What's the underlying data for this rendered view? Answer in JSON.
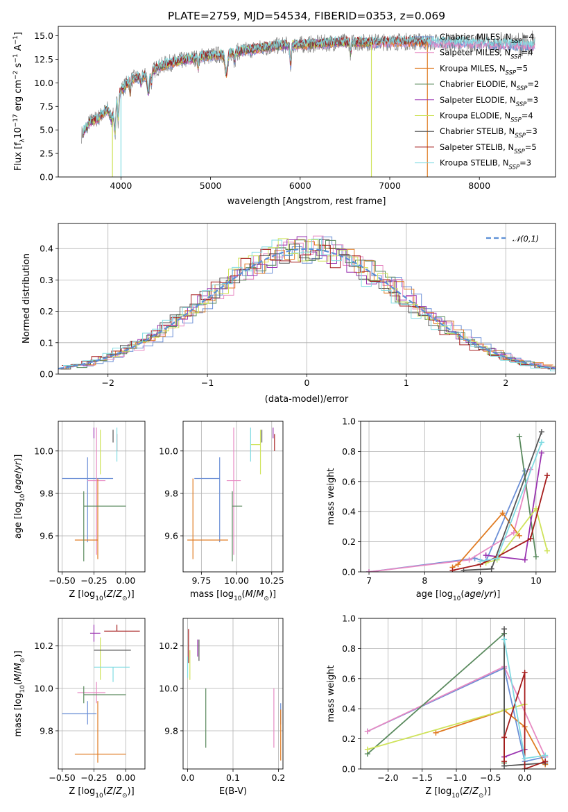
{
  "title": "PLATE=2759, MJD=54534, FIBERID=0353, z=0.069",
  "colors": {
    "Chabrier MILES": "#6b8fd6",
    "Salpeter MILES": "#e78ac3",
    "Kroupa MILES": "#e07b22",
    "Chabrier ELODIE": "#5a8a5e",
    "Salpeter ELODIE": "#9a33b0",
    "Kroupa ELODIE": "#cfe35a",
    "Chabrier STELIB": "#555555",
    "Salpeter STELIB": "#a51c1c",
    "Kroupa STELIB": "#80dbe2",
    "data": "#7f7f7f",
    "gauss": "#5b8fd6"
  },
  "legend_spectrum": [
    {
      "model": "Chabrier MILES",
      "text": "Chabrier MILES, N",
      "sub": "SSP",
      "tail": "=4"
    },
    {
      "model": "Salpeter MILES",
      "text": "Salpeter MILES, N",
      "sub": "SSP",
      "tail": "=4"
    },
    {
      "model": "Kroupa MILES",
      "text": "Kroupa MILES, N",
      "sub": "SSP",
      "tail": "=5"
    },
    {
      "model": "Chabrier ELODIE",
      "text": "Chabrier ELODIE, N",
      "sub": "SSP",
      "tail": "=2"
    },
    {
      "model": "Salpeter ELODIE",
      "text": "Salpeter ELODIE, N",
      "sub": "SSP",
      "tail": "=3"
    },
    {
      "model": "Kroupa ELODIE",
      "text": "Kroupa ELODIE, N",
      "sub": "SSP",
      "tail": "=4"
    },
    {
      "model": "Chabrier STELIB",
      "text": "Chabrier STELIB, N",
      "sub": "SSP",
      "tail": "=3"
    },
    {
      "model": "Salpeter STELIB",
      "text": "Salpeter STELIB, N",
      "sub": "SSP",
      "tail": "=5"
    },
    {
      "model": "Kroupa STELIB",
      "text": "Kroupa STELIB, N",
      "sub": "SSP",
      "tail": "=3"
    }
  ],
  "chart_data": [
    {
      "id": "spectrum",
      "type": "line",
      "title": "PLATE=2759, MJD=54534, FIBERID=0353, z=0.069",
      "xlabel": "wavelength [Angstrom, rest frame]",
      "ylabel": "Flux [fλ10⁻¹⁷ erg cm⁻² s⁻¹ A⁻¹]",
      "xlim": [
        3300,
        8850
      ],
      "ylim": [
        0,
        16
      ],
      "xticks": [
        4000,
        5000,
        6000,
        7000,
        8000
      ],
      "yticks": [
        0.0,
        2.5,
        5.0,
        7.5,
        10.0,
        12.5,
        15.0
      ],
      "legend_position": "right",
      "continuum": {
        "x": [
          3560,
          3650,
          3750,
          3850,
          3900,
          3950,
          4000,
          4100,
          4200,
          4300,
          4400,
          4500,
          4700,
          4900,
          5100,
          5300,
          5500,
          5800,
          6100,
          6400,
          6800,
          7200,
          7600,
          8000,
          8300,
          8600
        ],
        "y": [
          4.5,
          5.8,
          6.3,
          7.2,
          6.0,
          8.2,
          9.2,
          10.3,
          10.6,
          10.8,
          11.6,
          12.0,
          12.4,
          12.8,
          13.0,
          13.3,
          13.6,
          14.0,
          14.1,
          14.3,
          14.3,
          14.4,
          14.3,
          14.2,
          14.1,
          14.0
        ]
      },
      "data_series": "observed spectrum (grey)",
      "model_series": [
        "Chabrier MILES",
        "Salpeter MILES",
        "Kroupa MILES",
        "Chabrier ELODIE",
        "Salpeter ELODIE",
        "Kroupa ELODIE",
        "Chabrier STELIB",
        "Salpeter STELIB",
        "Kroupa STELIB"
      ]
    },
    {
      "id": "residuals",
      "type": "histogram",
      "xlabel": "(data-model)/error",
      "ylabel": "Normed distribution",
      "xlim": [
        -2.5,
        2.5
      ],
      "ylim": [
        0,
        0.48
      ],
      "xticks": [
        -2,
        -1,
        0,
        1,
        2
      ],
      "yticks": [
        0.0,
        0.1,
        0.2,
        0.3,
        0.4
      ],
      "bin_width": 0.1,
      "grid": true,
      "legend_position": "top-right",
      "gaussian": {
        "name": "𝒩(0,1)",
        "mean": 0,
        "sigma": 1
      }
    },
    {
      "id": "age_vs_Z",
      "type": "errorbar",
      "xlabel": "Z [log₁₀(Z/Z⊙)]",
      "ylabel": "age [log₁₀(age/yr)]",
      "xlim": [
        -0.53,
        0.15
      ],
      "ylim": [
        9.43,
        10.14
      ],
      "xticks": [
        -0.5,
        -0.25,
        0.0
      ],
      "xticklabels": [
        "−0.50",
        "−0.25",
        "0.00"
      ],
      "yticks": [
        9.6,
        9.8,
        10.0
      ],
      "grid": true,
      "points": [
        {
          "model": "Chabrier MILES",
          "x": -0.3,
          "xerr": [
            0.2,
            0.2
          ],
          "y": 9.87,
          "yerr": [
            0.3,
            0.1
          ]
        },
        {
          "model": "Salpeter MILES",
          "x": -0.23,
          "xerr": [
            0.07,
            0.07
          ],
          "y": 9.86,
          "yerr": [
            0.35,
            0.25
          ]
        },
        {
          "model": "Kroupa MILES",
          "x": -0.22,
          "xerr": [
            0.18,
            0.0
          ],
          "y": 9.58,
          "yerr": [
            0.09,
            0.29
          ]
        },
        {
          "model": "Chabrier ELODIE",
          "x": -0.33,
          "xerr": [
            0.0,
            0.33
          ],
          "y": 9.74,
          "yerr": [
            0.26,
            0.07
          ]
        },
        {
          "model": "Salpeter ELODIE",
          "x": -0.25,
          "xerr": [
            0.0,
            0.0
          ],
          "y": 10.1,
          "yerr": [
            0.04,
            0.01
          ]
        },
        {
          "model": "Kroupa ELODIE",
          "x": -0.2,
          "xerr": [
            0.0,
            0.0
          ],
          "y": 10.03,
          "yerr": [
            0.14,
            0.07
          ]
        },
        {
          "model": "Chabrier STELIB",
          "x": -0.1,
          "xerr": [
            0.0,
            0.0
          ],
          "y": 10.09,
          "yerr": [
            0.05,
            0.01
          ]
        },
        {
          "model": "Salpeter STELIB",
          "x": -0.07,
          "xerr": [
            0.0,
            0.0
          ],
          "y": 10.07,
          "yerr": [
            0.07,
            0.01
          ]
        },
        {
          "model": "Kroupa STELIB",
          "x": -0.07,
          "xerr": [
            0.0,
            0.0
          ],
          "y": 10.05,
          "yerr": [
            0.1,
            0.06
          ]
        }
      ]
    },
    {
      "id": "age_vs_mass",
      "type": "errorbar",
      "xlabel": "mass [log₁₀(M/M⊙)]",
      "xlim": [
        9.62,
        10.33
      ],
      "ylim": [
        9.43,
        10.14
      ],
      "xticks": [
        9.75,
        10.0,
        10.25
      ],
      "xticklabels": [
        "9.75",
        "10.00",
        "10.25"
      ],
      "yticks": [
        9.6,
        9.8,
        10.0
      ],
      "grid": true,
      "points": [
        {
          "model": "Chabrier MILES",
          "x": 9.88,
          "xerr": [
            0.18,
            0.0
          ],
          "y": 9.87,
          "yerr": [
            0.3,
            0.1
          ]
        },
        {
          "model": "Salpeter MILES",
          "x": 9.98,
          "xerr": [
            0.05,
            0.05
          ],
          "y": 9.86,
          "yerr": [
            0.35,
            0.25
          ]
        },
        {
          "model": "Kroupa MILES",
          "x": 9.69,
          "xerr": [
            0.04,
            0.25
          ],
          "y": 9.58,
          "yerr": [
            0.09,
            0.29
          ]
        },
        {
          "model": "Chabrier ELODIE",
          "x": 9.97,
          "xerr": [
            0.0,
            0.07
          ],
          "y": 9.74,
          "yerr": [
            0.26,
            0.07
          ]
        },
        {
          "model": "Salpeter ELODIE",
          "x": 10.26,
          "xerr": [
            0.0,
            0.0
          ],
          "y": 10.1,
          "yerr": [
            0.04,
            0.01
          ]
        },
        {
          "model": "Kroupa ELODIE",
          "x": 10.17,
          "xerr": [
            0.07,
            0.0
          ],
          "y": 10.03,
          "yerr": [
            0.14,
            0.07
          ]
        },
        {
          "model": "Chabrier STELIB",
          "x": 10.18,
          "xerr": [
            0.0,
            0.0
          ],
          "y": 10.09,
          "yerr": [
            0.05,
            0.01
          ]
        },
        {
          "model": "Salpeter STELIB",
          "x": 10.27,
          "xerr": [
            0.0,
            0.0
          ],
          "y": 10.07,
          "yerr": [
            0.07,
            0.01
          ]
        },
        {
          "model": "Kroupa STELIB",
          "x": 10.1,
          "xerr": [
            0.0,
            0.0
          ],
          "y": 10.05,
          "yerr": [
            0.1,
            0.06
          ]
        }
      ]
    },
    {
      "id": "weight_vs_age",
      "type": "line",
      "xlabel": "age [log₁₀(age/yr)]",
      "ylabel": "mass weight",
      "xlim": [
        6.85,
        10.35
      ],
      "ylim": [
        0,
        1.0
      ],
      "xticks": [
        7,
        8,
        9,
        10
      ],
      "yticks": [
        0.0,
        0.2,
        0.4,
        0.6,
        0.8,
        1.0
      ],
      "grid": true,
      "series": [
        {
          "model": "Chabrier MILES",
          "x": [
            7.0,
            8.9,
            9.1,
            9.8
          ],
          "y": [
            0.0,
            0.09,
            0.07,
            0.67
          ]
        },
        {
          "model": "Salpeter MILES",
          "x": [
            7.0,
            8.8,
            9.6,
            9.9
          ],
          "y": [
            0.0,
            0.08,
            0.26,
            0.68
          ]
        },
        {
          "model": "Kroupa MILES",
          "x": [
            8.5,
            8.6,
            9.4,
            9.7
          ],
          "y": [
            0.03,
            0.05,
            0.39,
            0.24
          ]
        },
        {
          "model": "Chabrier ELODIE",
          "x": [
            9.7,
            10.0
          ],
          "y": [
            0.9,
            0.1
          ]
        },
        {
          "model": "Salpeter ELODIE",
          "x": [
            9.1,
            9.8,
            10.1
          ],
          "y": [
            0.11,
            0.08,
            0.79
          ]
        },
        {
          "model": "Kroupa ELODIE",
          "x": [
            9.1,
            9.3,
            10.0,
            10.2
          ],
          "y": [
            0.06,
            0.08,
            0.42,
            0.14
          ]
        },
        {
          "model": "Chabrier STELIB",
          "x": [
            8.7,
            9.2,
            10.1
          ],
          "y": [
            0.01,
            0.02,
            0.93
          ]
        },
        {
          "model": "Salpeter STELIB",
          "x": [
            8.5,
            9.0,
            9.3,
            9.9,
            10.2
          ],
          "y": [
            0.01,
            0.05,
            0.1,
            0.22,
            0.64
          ]
        },
        {
          "model": "Kroupa STELIB",
          "x": [
            9.0,
            9.3,
            10.1
          ],
          "y": [
            0.07,
            0.09,
            0.86
          ]
        }
      ]
    },
    {
      "id": "mass_vs_Z",
      "type": "errorbar",
      "xlabel": "Z [log₁₀(Z/Z⊙)]",
      "ylabel": "mass [log₁₀(M/M⊙)]",
      "xlim": [
        -0.53,
        0.15
      ],
      "ylim": [
        9.62,
        10.33
      ],
      "xticks": [
        -0.5,
        -0.25,
        0.0
      ],
      "xticklabels": [
        "−0.50",
        "−0.25",
        "0.00"
      ],
      "yticks": [
        9.8,
        10.0,
        10.2
      ],
      "grid": true,
      "points": [
        {
          "model": "Chabrier MILES",
          "x": -0.3,
          "xerr": [
            0.2,
            0.07
          ],
          "y": 9.88,
          "yerr": [
            0.05,
            0.06
          ]
        },
        {
          "model": "Salpeter MILES",
          "x": -0.23,
          "xerr": [
            0.15,
            0.07
          ],
          "y": 9.98,
          "yerr": [
            0.05,
            0.05
          ]
        },
        {
          "model": "Kroupa MILES",
          "x": -0.22,
          "xerr": [
            0.18,
            0.22
          ],
          "y": 9.69,
          "yerr": [
            0.04,
            0.25
          ]
        },
        {
          "model": "Chabrier ELODIE",
          "x": -0.33,
          "xerr": [
            0.0,
            0.33
          ],
          "y": 9.97,
          "yerr": [
            0.04,
            0.04
          ]
        },
        {
          "model": "Salpeter ELODIE",
          "x": -0.25,
          "xerr": [
            0.03,
            0.05
          ],
          "y": 10.26,
          "yerr": [
            0.04,
            0.04
          ]
        },
        {
          "model": "Kroupa ELODIE",
          "x": -0.2,
          "xerr": [
            0.0,
            0.0
          ],
          "y": 10.17,
          "yerr": [
            0.13,
            0.07
          ]
        },
        {
          "model": "Chabrier STELIB",
          "x": -0.1,
          "xerr": [
            0.15,
            0.14
          ],
          "y": 10.18,
          "yerr": [
            0.0,
            0.0
          ]
        },
        {
          "model": "Salpeter STELIB",
          "x": -0.07,
          "xerr": [
            0.1,
            0.18
          ],
          "y": 10.27,
          "yerr": [
            0.0,
            0.03
          ]
        },
        {
          "model": "Kroupa STELIB",
          "x": -0.1,
          "xerr": [
            0.15,
            0.13
          ],
          "y": 10.1,
          "yerr": [
            0.07,
            0.0
          ]
        }
      ]
    },
    {
      "id": "mass_vs_ebv",
      "type": "errorbar",
      "xlabel": "E(B-V)",
      "xlim": [
        -0.01,
        0.21
      ],
      "ylim": [
        9.62,
        10.33
      ],
      "xticks": [
        0.0,
        0.1,
        0.2
      ],
      "xticklabels": [
        "0.0",
        "0.1",
        "0.2"
      ],
      "yticks": [
        9.8,
        10.0,
        10.2
      ],
      "grid": true,
      "points": [
        {
          "model": "Chabrier MILES",
          "x": 0.205,
          "xerr": [
            0.0,
            0.0
          ],
          "y": 9.88,
          "yerr": [
            0.05,
            0.05
          ]
        },
        {
          "model": "Salpeter MILES",
          "x": 0.19,
          "xerr": [
            0.0,
            0.0
          ],
          "y": 9.87,
          "yerr": [
            0.15,
            0.13
          ]
        },
        {
          "model": "Kroupa MILES",
          "x": 0.205,
          "xerr": [
            0.0,
            0.0
          ],
          "y": 9.78,
          "yerr": [
            0.12,
            0.12
          ]
        },
        {
          "model": "Chabrier ELODIE",
          "x": 0.04,
          "xerr": [
            0.0,
            0.0
          ],
          "y": 9.86,
          "yerr": [
            0.14,
            0.14
          ]
        },
        {
          "model": "Salpeter ELODIE",
          "x": 0.022,
          "xerr": [
            0.0,
            0.0
          ],
          "y": 10.19,
          "yerr": [
            0.04,
            0.04
          ]
        },
        {
          "model": "Kroupa ELODIE",
          "x": 0.005,
          "xerr": [
            0.0,
            0.0
          ],
          "y": 10.11,
          "yerr": [
            0.07,
            0.07
          ]
        },
        {
          "model": "Chabrier STELIB",
          "x": 0.025,
          "xerr": [
            0.0,
            0.0
          ],
          "y": 10.18,
          "yerr": [
            0.05,
            0.05
          ]
        },
        {
          "model": "Salpeter STELIB",
          "x": 0.002,
          "xerr": [
            0.0,
            0.0
          ],
          "y": 10.2,
          "yerr": [
            0.08,
            0.08
          ]
        },
        {
          "model": "Kroupa STELIB",
          "x": 0.0,
          "xerr": [
            0.0,
            0.0
          ],
          "y": 10.1,
          "yerr": [
            0.05,
            0.05
          ]
        }
      ]
    },
    {
      "id": "weight_vs_Z",
      "type": "line",
      "xlabel": "Z [log₁₀(Z/Z⊙)]",
      "ylabel": "mass weight",
      "xlim": [
        -2.4,
        0.45
      ],
      "ylim": [
        0,
        1.0
      ],
      "xticks": [
        -2.0,
        -1.5,
        -1.0,
        -0.5,
        0.0
      ],
      "xticklabels": [
        "−2.0",
        "−1.5",
        "−1.0",
        "−0.5",
        "0.0"
      ],
      "yticks": [
        0.0,
        0.2,
        0.4,
        0.6,
        0.8,
        1.0
      ],
      "grid": true,
      "series": [
        {
          "model": "Chabrier MILES",
          "x": [
            -2.3,
            -0.3,
            0.0,
            0.3
          ],
          "y": [
            0.25,
            0.67,
            0.05,
            0.08
          ]
        },
        {
          "model": "Salpeter MILES",
          "x": [
            -2.3,
            -0.3,
            0.3
          ],
          "y": [
            0.25,
            0.68,
            0.08
          ]
        },
        {
          "model": "Kroupa MILES",
          "x": [
            -1.3,
            -0.3,
            0.0,
            0.3
          ],
          "y": [
            0.24,
            0.39,
            0.28,
            0.03
          ]
        },
        {
          "model": "Chabrier ELODIE",
          "x": [
            -2.3,
            -0.3,
            -0.3
          ],
          "y": [
            0.1,
            0.9,
            0.04
          ]
        },
        {
          "model": "Salpeter ELODIE",
          "x": [
            -0.3,
            0.0
          ],
          "y": [
            0.08,
            0.13
          ]
        },
        {
          "model": "Kroupa ELODIE",
          "x": [
            -2.3,
            -0.3,
            0.0
          ],
          "y": [
            0.13,
            0.39,
            0.43
          ]
        },
        {
          "model": "Chabrier STELIB",
          "x": [
            -0.3,
            -0.3,
            0.3
          ],
          "y": [
            0.93,
            0.02,
            0.04
          ]
        },
        {
          "model": "Salpeter STELIB",
          "x": [
            -0.3,
            -0.3,
            0.0,
            0.0,
            0.3
          ],
          "y": [
            0.05,
            0.21,
            0.64,
            0.0,
            0.05
          ]
        },
        {
          "model": "Kroupa STELIB",
          "x": [
            -0.3,
            0.0,
            0.3
          ],
          "y": [
            0.86,
            0.07,
            0.09
          ]
        }
      ]
    }
  ]
}
